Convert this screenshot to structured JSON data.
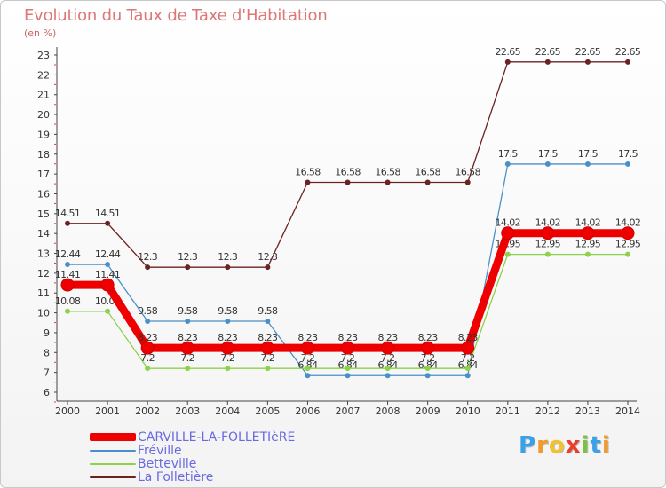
{
  "title": "Evolution du Taux de Taxe d'Habitation",
  "subtitle": "(en %)",
  "logo": {
    "letters": [
      "P",
      "r",
      "o",
      "x",
      "i",
      "t",
      "i"
    ],
    "colors": [
      "#3aa0e8",
      "#f39a2b",
      "#f2c12e",
      "#e8402b",
      "#7cc242",
      "#3aa0e8",
      "#f39a2b"
    ]
  },
  "chart_data": {
    "type": "line",
    "title": "Evolution du Taux de Taxe d'Habitation",
    "ylabel": "(en %)",
    "xlabel": "",
    "x": [
      2000,
      2001,
      2002,
      2003,
      2004,
      2005,
      2006,
      2007,
      2008,
      2009,
      2010,
      2011,
      2012,
      2013,
      2014
    ],
    "ylim": [
      6,
      23
    ],
    "yticks": [
      6,
      7,
      8,
      9,
      10,
      11,
      12,
      13,
      14,
      15,
      16,
      17,
      18,
      19,
      20,
      21,
      22,
      23
    ],
    "grid": false,
    "legend_position": "bottom-left",
    "series": [
      {
        "name": "La Folletière",
        "color": "#6b2222",
        "values": [
          14.51,
          14.51,
          12.3,
          12.3,
          12.3,
          12.3,
          16.58,
          16.58,
          16.58,
          16.58,
          16.58,
          22.65,
          22.65,
          22.65,
          22.65
        ],
        "labels": [
          "14.51",
          "14.51",
          "12.3",
          "12.3",
          "12.3",
          "12.3",
          "16.58",
          "16.58",
          "16.58",
          "16.58",
          "16.58",
          "22.65",
          "22.65",
          "22.65",
          "22.65"
        ]
      },
      {
        "name": "Fréville",
        "color": "#4a90c8",
        "values": [
          12.44,
          12.44,
          9.58,
          9.58,
          9.58,
          9.58,
          6.84,
          6.84,
          6.84,
          6.84,
          6.84,
          17.5,
          17.5,
          17.5,
          17.5
        ],
        "labels": [
          "12.44",
          "12.44",
          "9.58",
          "9.58",
          "9.58",
          "9.58",
          "6.84",
          "6.84",
          "6.84",
          "6.84",
          "6.84",
          "17.5",
          "17.5",
          "17.5",
          "17.5"
        ]
      },
      {
        "name": "Betteville",
        "color": "#8ed14a",
        "values": [
          10.08,
          10.08,
          7.2,
          7.2,
          7.2,
          7.2,
          7.2,
          7.2,
          7.2,
          7.2,
          7.2,
          12.95,
          12.95,
          12.95,
          12.95
        ],
        "labels": [
          "10.08",
          "10.08",
          "7.2",
          "7.2",
          "7.2",
          "7.2",
          "7.2",
          "7.2",
          "7.2",
          "7.2",
          "7.2",
          "12.95",
          "12.95",
          "12.95",
          "12.95"
        ]
      },
      {
        "name": "CARVILLE-LA-FOLLETIèRE",
        "color": "#ee0000",
        "values": [
          11.41,
          11.41,
          8.23,
          8.23,
          8.23,
          8.23,
          8.23,
          8.23,
          8.23,
          8.23,
          8.23,
          14.02,
          14.02,
          14.02,
          14.02
        ],
        "labels": [
          "11.41",
          "11.41",
          "8.23",
          "8.23",
          "8.23",
          "8.23",
          "8.23",
          "8.23",
          "8.23",
          "8.23",
          "8.23",
          "14.02",
          "14.02",
          "14.02",
          "14.02"
        ]
      }
    ],
    "legend": [
      "CARVILLE-LA-FOLLETIèRE",
      "Fréville",
      "Betteville",
      "La Folletière"
    ]
  }
}
